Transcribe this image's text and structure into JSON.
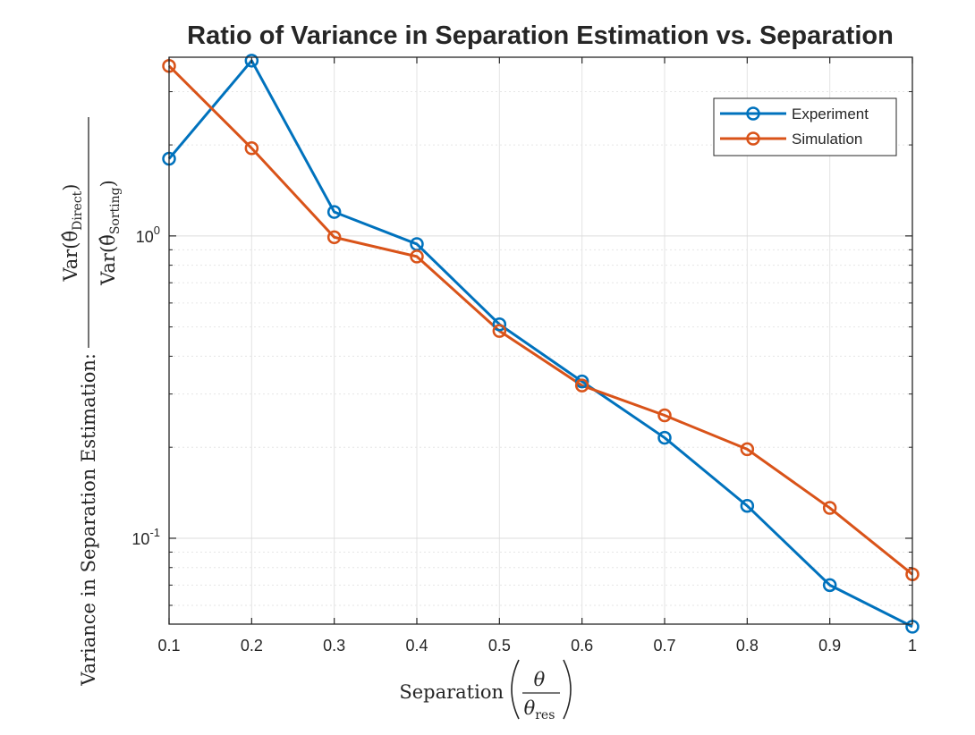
{
  "chart_data": {
    "type": "line",
    "title": "Ratio of Variance in Separation Estimation vs. Separation",
    "xlabel": "Separation (θ / θres)",
    "xlabel_parts": {
      "word": "Separation",
      "numerator": "θ",
      "denominator": "θ",
      "denominator_sub": "res"
    },
    "ylabel": "Variance in Separation Estimation: Var(θ̂Direct) / Var(θ̂Sorting)",
    "ylabel_parts": {
      "word": "Variance in Separation Estimation:",
      "num_prefix": "Var(",
      "num_sub": "Direct",
      "den_prefix": "Var(",
      "den_sub": "Sorting",
      "hat_theta": "θ̂",
      "close": ")"
    },
    "x": [
      0.1,
      0.2,
      0.3,
      0.4,
      0.5,
      0.6,
      0.7,
      0.8,
      0.9,
      1.0
    ],
    "series": [
      {
        "name": "Experiment",
        "color": "#0072BD",
        "values": [
          1.8,
          3.8,
          1.2,
          0.94,
          0.51,
          0.33,
          0.215,
          0.128,
          0.07,
          0.051
        ]
      },
      {
        "name": "Simulation",
        "color": "#D95319",
        "values": [
          3.65,
          1.95,
          0.99,
          0.855,
          0.485,
          0.32,
          0.255,
          0.197,
          0.126,
          0.076
        ]
      }
    ],
    "xlim": [
      0.1,
      1.0
    ],
    "ylim": [
      0.052,
      3.9
    ],
    "yscale": "log",
    "xticks": [
      "0.1",
      "0.2",
      "0.3",
      "0.4",
      "0.5",
      "0.6",
      "0.7",
      "0.8",
      "0.9",
      "1"
    ],
    "yticks": [
      {
        "base": "10",
        "exp": "-1",
        "value": 0.1
      },
      {
        "base": "10",
        "exp": "0",
        "value": 1
      }
    ],
    "grid": true,
    "minor_grid": true,
    "legend_position": "top-right"
  }
}
